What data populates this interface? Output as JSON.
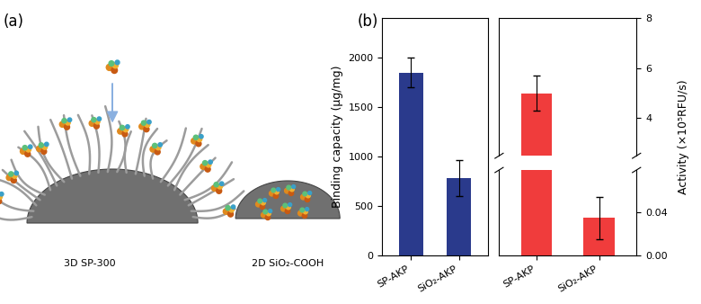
{
  "diagram": {
    "label": "(a)",
    "items": [
      "3D SP-300",
      "2D SiO₂-COOH"
    ]
  },
  "chart_label": "(b)",
  "chart_data": [
    {
      "type": "bar",
      "categories": [
        "SP-AKP",
        "SiO₂-AKP"
      ],
      "values": [
        1850,
        780
      ],
      "errors": [
        150,
        180
      ],
      "color": "#2a3a8c",
      "ylabel": "Binding capacity (μg/mg)",
      "ylim": [
        0,
        2400
      ],
      "yticks": [
        0,
        500,
        1000,
        1500,
        2000
      ]
    },
    {
      "type": "bar",
      "categories": [
        "SP-AKP",
        "SiO₂-AKP"
      ],
      "values": [
        5.0,
        0.035
      ],
      "errors": [
        0.7,
        0.02
      ],
      "color": "#f03c3c",
      "ylabel": "Activity (×10⁵RFU/s)",
      "ylim": [
        0,
        8
      ],
      "y_break": [
        0.08,
        2.5
      ],
      "yticks": [
        {
          "value": 0,
          "label": "0.00"
        },
        0.04,
        4,
        6,
        8
      ]
    }
  ]
}
